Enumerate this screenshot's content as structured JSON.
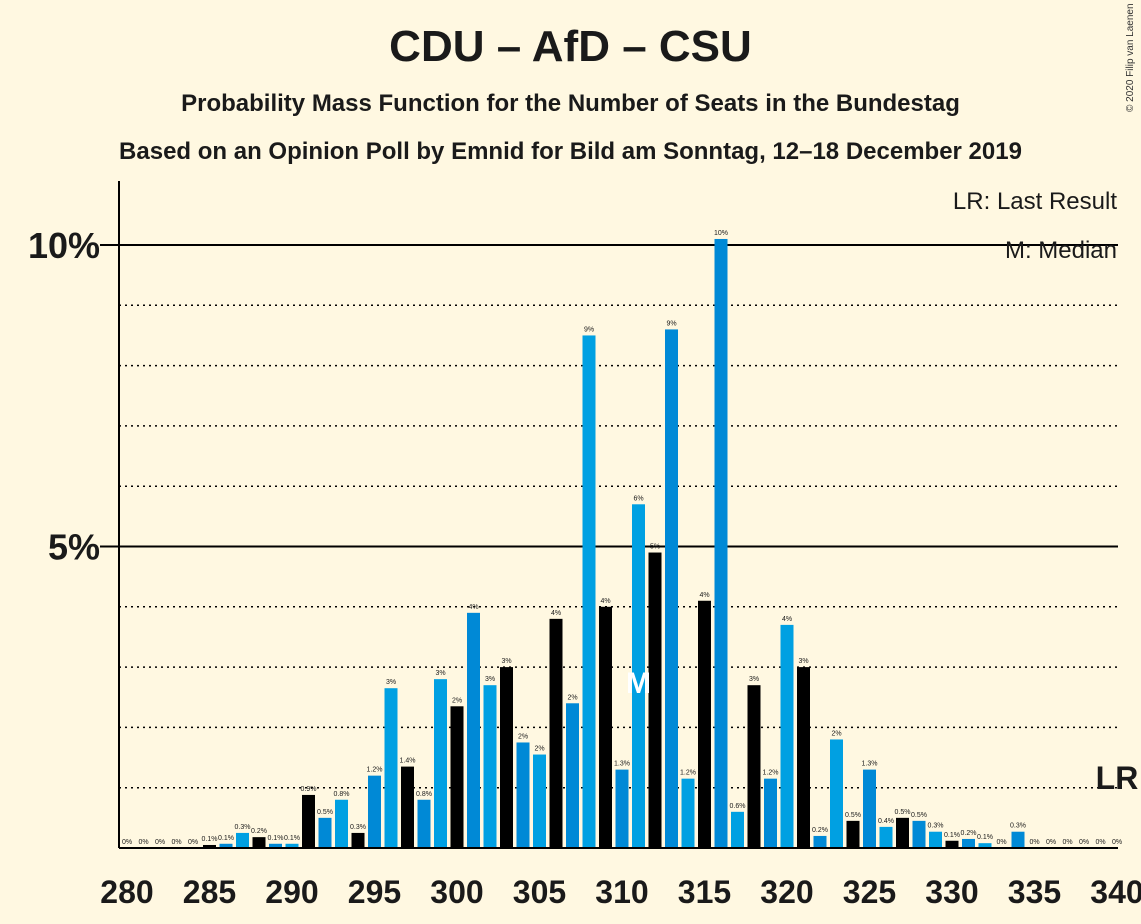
{
  "title": "CDU – AfD – CSU",
  "subtitle": "Probability Mass Function for the Number of Seats in the Bundestag",
  "subtitle2": "Based on an Opinion Poll by Emnid for Bild am Sonntag, 12–18 December 2019",
  "copyright": "© 2020 Filip van Laenen",
  "legend": {
    "last_result": "LR: Last Result",
    "median": "M: Median"
  },
  "markers": {
    "median_label": "M",
    "last_result_label": "LR"
  },
  "colors": {
    "background": "#FFF8E1",
    "bar_light": "#00A0E2",
    "bar_medium": "#0089D6",
    "bar_dark": "#000000"
  },
  "chart_data": {
    "type": "bar",
    "x": [
      280,
      281,
      282,
      283,
      284,
      285,
      286,
      287,
      288,
      289,
      290,
      291,
      292,
      293,
      294,
      295,
      296,
      297,
      298,
      299,
      300,
      301,
      302,
      303,
      304,
      305,
      306,
      307,
      308,
      309,
      310,
      311,
      312,
      313,
      314,
      315,
      316,
      317,
      318,
      319,
      320,
      321,
      322,
      323,
      324,
      325,
      326,
      327,
      328,
      329,
      330,
      331,
      332,
      333,
      334,
      335,
      336,
      337,
      338,
      339,
      340
    ],
    "values": [
      0,
      0,
      0,
      0,
      0,
      0.05,
      0.07,
      0.25,
      0.18,
      0.07,
      0.07,
      0.88,
      0.5,
      0.8,
      0.25,
      1.2,
      2.65,
      1.35,
      0.8,
      2.8,
      2.35,
      3.9,
      2.7,
      3.0,
      1.75,
      1.55,
      3.8,
      2.4,
      8.5,
      4.0,
      1.3,
      5.7,
      4.9,
      8.6,
      1.15,
      4.1,
      10.1,
      0.6,
      2.7,
      1.15,
      3.7,
      3.0,
      0.2,
      1.8,
      0.45,
      1.3,
      0.35,
      0.5,
      0.45,
      0.27,
      0.12,
      0.15,
      0.08,
      0,
      0.27,
      0,
      0,
      0,
      0,
      0,
      0
    ],
    "data_labels": [
      "0%",
      "0%",
      "0%",
      "0%",
      "0%",
      "0.1%",
      "0.1%",
      "0.3%",
      "0.2%",
      "0.1%",
      "0.1%",
      "0.9%",
      "0.5%",
      "0.8%",
      "0.3%",
      "1.2%",
      "3%",
      "1.4%",
      "0.8%",
      "3%",
      "2%",
      "4%",
      "3%",
      "3%",
      "2%",
      "2%",
      "4%",
      "2%",
      "9%",
      "4%",
      "1.3%",
      "6%",
      "5%",
      "9%",
      "1.2%",
      "4%",
      "10%",
      "0.6%",
      "3%",
      "1.2%",
      "4%",
      "3%",
      "0.2%",
      "2%",
      "0.5%",
      "1.3%",
      "0.4%",
      "0.5%",
      "0.5%",
      "0.3%",
      "0.1%",
      "0.2%",
      "0.1%",
      "0%",
      "0.3%",
      "0%",
      "0%",
      "0%",
      "0%",
      "0%",
      "0%"
    ],
    "color_pattern": [
      "medium",
      "light",
      "dark"
    ],
    "xticks": [
      280,
      285,
      290,
      295,
      300,
      305,
      310,
      315,
      320,
      325,
      330,
      335,
      340
    ],
    "yticks": [
      {
        "value": 5,
        "label": "5%"
      },
      {
        "value": 10,
        "label": "10%"
      }
    ],
    "ylim": [
      0,
      11
    ],
    "xlim": [
      280,
      340
    ],
    "median": 311,
    "last_result": 340,
    "grid": "dotted every 1%, solid at 5% and 10%"
  }
}
